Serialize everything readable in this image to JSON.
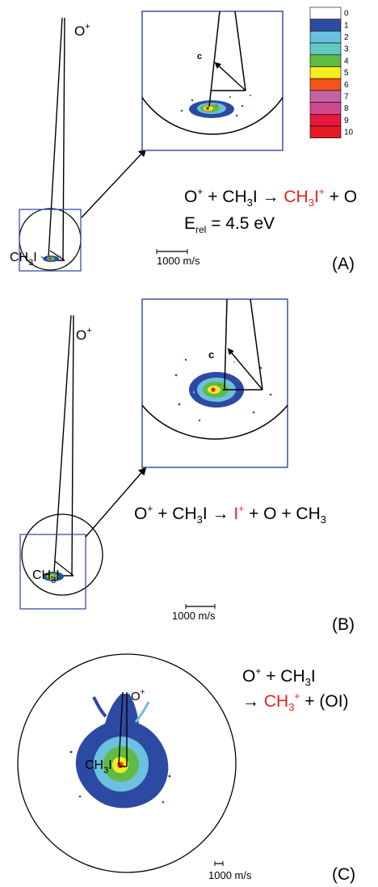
{
  "colors": {
    "box": "#3a4fa8",
    "accent_red": "#e8201e",
    "arrow": "#000000"
  },
  "colorbar": {
    "levels": [
      "0",
      "1",
      "2",
      "3",
      "4",
      "5",
      "6",
      "7",
      "8",
      "9",
      "10"
    ],
    "swatches": [
      "#ffffff",
      "#2d4aa3",
      "#6cc0e0",
      "#62c9c2",
      "#5fbb44",
      "#f4ee1e",
      "#f2541c",
      "#c563a6",
      "#cf4a8d",
      "#e8173f",
      "#e21b22"
    ]
  },
  "panels": [
    {
      "id": "A",
      "letter": "(A)",
      "o_plus_label": "O",
      "o_plus_sup": "+",
      "ch3i_label": "CH",
      "ch3i_sub": "3",
      "ch3i_tail": "I",
      "c_label": "c",
      "scale_label": "1000 m/s",
      "eq_left": "O",
      "eq_left_sup": "+",
      "eq_mid": " + CH",
      "eq_mid_sub": "3",
      "eq_mid_tail": "I → ",
      "eq_product": "CH",
      "eq_product_sub": "3",
      "eq_product_tail": "I",
      "eq_product_sup": "+",
      "eq_right": " + O",
      "erel_E": "E",
      "erel_sub": "rel",
      "erel_tail": " = 4.5 eV"
    },
    {
      "id": "B",
      "letter": "(B)",
      "o_plus_label": "O",
      "o_plus_sup": "+",
      "ch3i_label": "CH",
      "ch3i_sub": "3",
      "ch3i_tail": "I",
      "c_label": "c",
      "scale_label": "1000 m/s",
      "eq_left": "O",
      "eq_left_sup": "+",
      "eq_mid": " + CH",
      "eq_mid_sub": "3",
      "eq_mid_tail": "I → ",
      "eq_product": "I",
      "eq_product_sup": "+",
      "eq_right": " + O + CH",
      "eq_right_sub": "3"
    },
    {
      "id": "C",
      "letter": "(C)",
      "o_plus_label": "O",
      "o_plus_sup": "+",
      "ch3i_label": "CH",
      "ch3i_sub": "3",
      "ch3i_tail": "I",
      "scale_label": "1000 m/s",
      "eq_line1_left": "O",
      "eq_line1_sup": "+",
      "eq_line1_mid": " + CH",
      "eq_line1_sub": "3",
      "eq_line1_tail": "I",
      "eq_line2_arrow": "→ ",
      "eq_line2_product": "CH",
      "eq_line2_sub": "3",
      "eq_line2_sup": "+",
      "eq_line2_right": " + (OI)"
    }
  ]
}
